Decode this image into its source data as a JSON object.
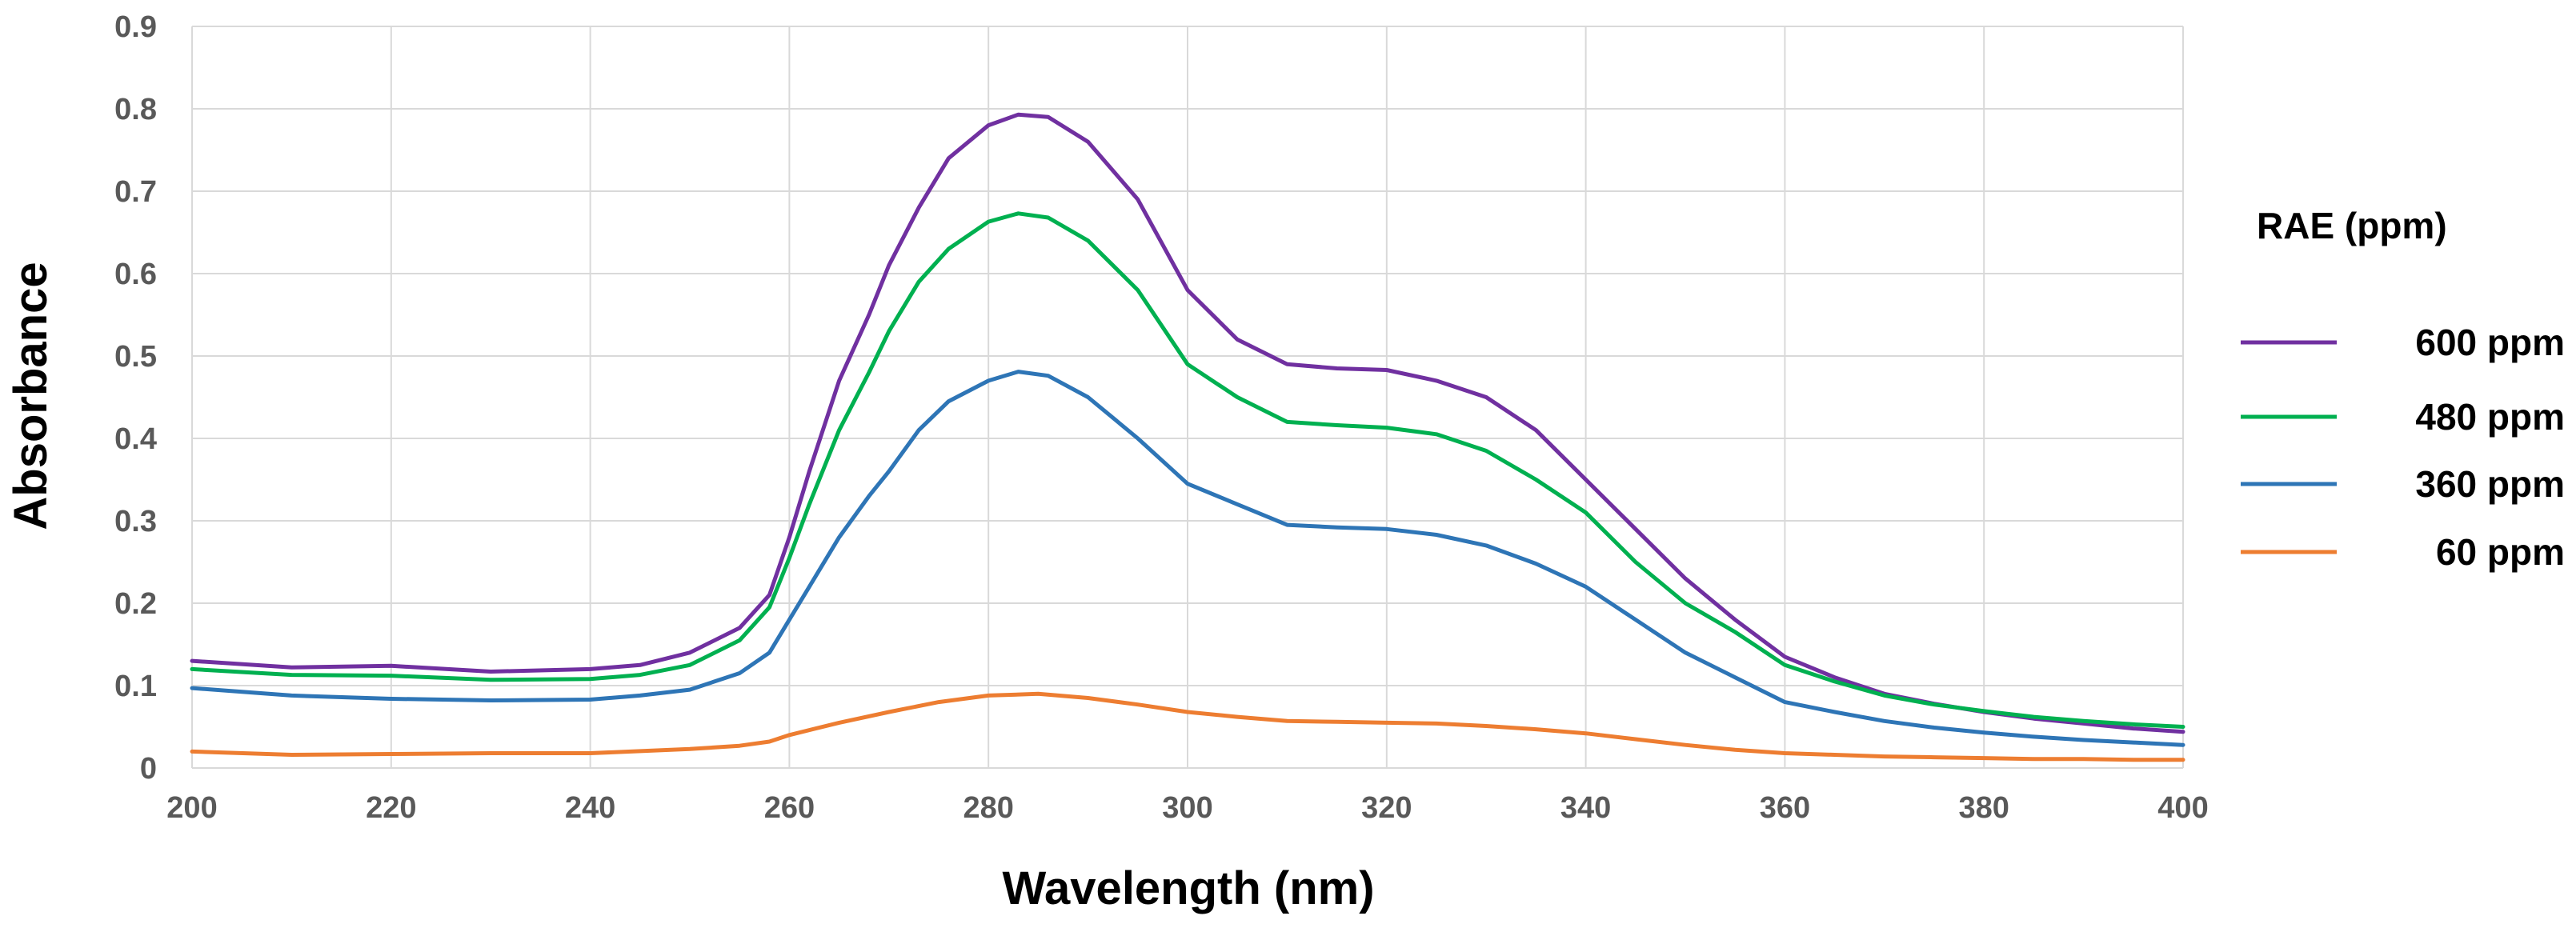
{
  "chart_data": {
    "type": "line",
    "title": "",
    "xlabel": "Wavelength (nm)",
    "ylabel": "Absorbance",
    "xlim": [
      200,
      400
    ],
    "ylim": [
      0,
      0.9
    ],
    "x_ticks": [
      "200",
      "220",
      "240",
      "260",
      "280",
      "300",
      "320",
      "340",
      "360",
      "380",
      "400"
    ],
    "y_ticks": [
      "0",
      "0.1",
      "0.2",
      "0.3",
      "0.4",
      "0.5",
      "0.6",
      "0.7",
      "0.8",
      "0.9"
    ],
    "grid": true,
    "legend": {
      "title": "RAE (ppm)",
      "placement": "right"
    },
    "series": [
      {
        "name": "600 ppm",
        "color": "#7030a0",
        "points": [
          [
            200,
            0.13
          ],
          [
            210,
            0.122
          ],
          [
            220,
            0.124
          ],
          [
            230,
            0.117
          ],
          [
            240,
            0.12
          ],
          [
            245,
            0.125
          ],
          [
            250,
            0.14
          ],
          [
            255,
            0.17
          ],
          [
            258,
            0.21
          ],
          [
            260,
            0.28
          ],
          [
            262,
            0.36
          ],
          [
            265,
            0.47
          ],
          [
            268,
            0.55
          ],
          [
            270,
            0.61
          ],
          [
            273,
            0.68
          ],
          [
            276,
            0.74
          ],
          [
            280,
            0.78
          ],
          [
            283,
            0.793
          ],
          [
            286,
            0.79
          ],
          [
            290,
            0.76
          ],
          [
            295,
            0.69
          ],
          [
            300,
            0.58
          ],
          [
            305,
            0.52
          ],
          [
            310,
            0.49
          ],
          [
            315,
            0.485
          ],
          [
            320,
            0.483
          ],
          [
            325,
            0.47
          ],
          [
            330,
            0.45
          ],
          [
            335,
            0.41
          ],
          [
            340,
            0.35
          ],
          [
            345,
            0.29
          ],
          [
            350,
            0.23
          ],
          [
            355,
            0.18
          ],
          [
            360,
            0.135
          ],
          [
            365,
            0.11
          ],
          [
            370,
            0.09
          ],
          [
            375,
            0.078
          ],
          [
            380,
            0.068
          ],
          [
            385,
            0.06
          ],
          [
            390,
            0.054
          ],
          [
            395,
            0.048
          ],
          [
            400,
            0.044
          ]
        ]
      },
      {
        "name": "480 ppm",
        "color": "#00b050",
        "points": [
          [
            200,
            0.12
          ],
          [
            210,
            0.113
          ],
          [
            220,
            0.112
          ],
          [
            230,
            0.107
          ],
          [
            240,
            0.108
          ],
          [
            245,
            0.113
          ],
          [
            250,
            0.125
          ],
          [
            255,
            0.155
          ],
          [
            258,
            0.195
          ],
          [
            260,
            0.255
          ],
          [
            262,
            0.32
          ],
          [
            265,
            0.41
          ],
          [
            268,
            0.48
          ],
          [
            270,
            0.53
          ],
          [
            273,
            0.59
          ],
          [
            276,
            0.63
          ],
          [
            280,
            0.663
          ],
          [
            283,
            0.673
          ],
          [
            286,
            0.668
          ],
          [
            290,
            0.64
          ],
          [
            295,
            0.58
          ],
          [
            300,
            0.49
          ],
          [
            305,
            0.45
          ],
          [
            310,
            0.42
          ],
          [
            315,
            0.416
          ],
          [
            320,
            0.413
          ],
          [
            325,
            0.405
          ],
          [
            330,
            0.385
          ],
          [
            335,
            0.35
          ],
          [
            340,
            0.31
          ],
          [
            345,
            0.25
          ],
          [
            350,
            0.2
          ],
          [
            355,
            0.165
          ],
          [
            360,
            0.125
          ],
          [
            365,
            0.105
          ],
          [
            370,
            0.088
          ],
          [
            375,
            0.077
          ],
          [
            380,
            0.069
          ],
          [
            385,
            0.062
          ],
          [
            390,
            0.057
          ],
          [
            395,
            0.053
          ],
          [
            400,
            0.05
          ]
        ]
      },
      {
        "name": "360 ppm",
        "color": "#2e75b6",
        "points": [
          [
            200,
            0.097
          ],
          [
            210,
            0.088
          ],
          [
            220,
            0.084
          ],
          [
            230,
            0.082
          ],
          [
            240,
            0.083
          ],
          [
            245,
            0.088
          ],
          [
            250,
            0.095
          ],
          [
            255,
            0.115
          ],
          [
            258,
            0.14
          ],
          [
            260,
            0.18
          ],
          [
            262,
            0.22
          ],
          [
            265,
            0.28
          ],
          [
            268,
            0.33
          ],
          [
            270,
            0.36
          ],
          [
            273,
            0.41
          ],
          [
            276,
            0.445
          ],
          [
            280,
            0.47
          ],
          [
            283,
            0.481
          ],
          [
            286,
            0.476
          ],
          [
            290,
            0.45
          ],
          [
            295,
            0.4
          ],
          [
            300,
            0.345
          ],
          [
            305,
            0.32
          ],
          [
            310,
            0.295
          ],
          [
            315,
            0.292
          ],
          [
            320,
            0.29
          ],
          [
            325,
            0.283
          ],
          [
            330,
            0.27
          ],
          [
            335,
            0.248
          ],
          [
            340,
            0.22
          ],
          [
            345,
            0.18
          ],
          [
            350,
            0.14
          ],
          [
            355,
            0.11
          ],
          [
            360,
            0.08
          ],
          [
            365,
            0.068
          ],
          [
            370,
            0.057
          ],
          [
            375,
            0.049
          ],
          [
            380,
            0.043
          ],
          [
            385,
            0.038
          ],
          [
            390,
            0.034
          ],
          [
            395,
            0.031
          ],
          [
            400,
            0.028
          ]
        ]
      },
      {
        "name": "60 ppm",
        "color": "#ed7d31",
        "points": [
          [
            200,
            0.02
          ],
          [
            210,
            0.016
          ],
          [
            220,
            0.017
          ],
          [
            230,
            0.018
          ],
          [
            240,
            0.018
          ],
          [
            250,
            0.023
          ],
          [
            255,
            0.027
          ],
          [
            258,
            0.032
          ],
          [
            260,
            0.04
          ],
          [
            265,
            0.055
          ],
          [
            270,
            0.068
          ],
          [
            275,
            0.08
          ],
          [
            280,
            0.088
          ],
          [
            285,
            0.09
          ],
          [
            290,
            0.085
          ],
          [
            295,
            0.077
          ],
          [
            300,
            0.068
          ],
          [
            305,
            0.062
          ],
          [
            310,
            0.057
          ],
          [
            315,
            0.056
          ],
          [
            320,
            0.055
          ],
          [
            325,
            0.054
          ],
          [
            330,
            0.051
          ],
          [
            335,
            0.047
          ],
          [
            340,
            0.042
          ],
          [
            345,
            0.035
          ],
          [
            350,
            0.028
          ],
          [
            355,
            0.022
          ],
          [
            360,
            0.018
          ],
          [
            365,
            0.016
          ],
          [
            370,
            0.014
          ],
          [
            375,
            0.013
          ],
          [
            380,
            0.012
          ],
          [
            385,
            0.011
          ],
          [
            390,
            0.011
          ],
          [
            395,
            0.01
          ],
          [
            400,
            0.01
          ]
        ]
      }
    ]
  }
}
